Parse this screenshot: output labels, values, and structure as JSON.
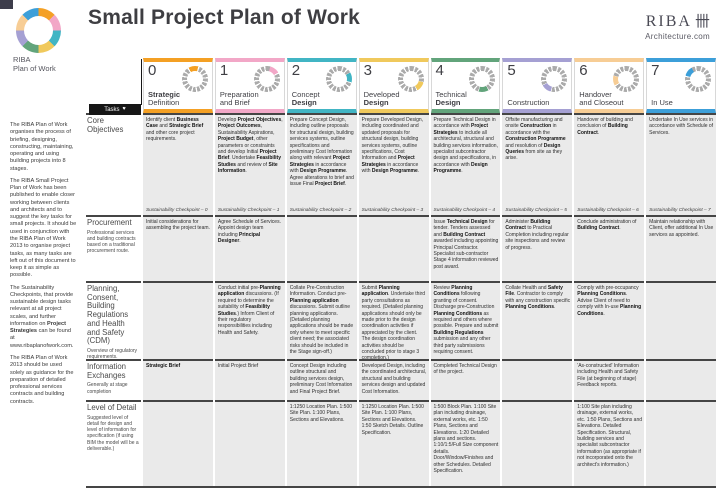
{
  "page_title": "Small Project Plan of Work",
  "logo": {
    "brand": "RIBA",
    "product": "Plan of Work"
  },
  "right_brand": {
    "name": "RIBA",
    "glyph": "卌",
    "site": "Architecture.com"
  },
  "tabs": {
    "stages": "Stages",
    "tasks": "Tasks",
    "heart_icon": "♥"
  },
  "intro": [
    "The RIBA Plan of Work organises the process of briefing, designing, constructing, maintaining, operating and using building projects into 8 stages.",
    "The RIBA Small Project Plan of Work has been published to enable closer working between clients and architects and to suggest the key tasks for small projects. It should be used in conjunction with the RIBA Plan of Work 2013 to organise project tasks, as many tasks are left out of this document to keep it as simple as possible.",
    "The Sustainability Checkpoints, that provide sustainable design tasks relevant at all project scales, and further information on **Project Strategies** can be found at www.ribaplanofwork.com.",
    "The RIBA Plan of Work 2013 should be used solely as guidance for the preparation of detailed professional services contracts and building contracts."
  ],
  "stages": [
    {
      "number": "0",
      "line1": "**Strategic**",
      "line2": "Definition",
      "color": "#F4A024"
    },
    {
      "number": "1",
      "line1": "Preparation",
      "line2": "and Brief",
      "color": "#F2A7C7"
    },
    {
      "number": "2",
      "line1": "Concept",
      "line2": "**Design**",
      "color": "#41B5C4"
    },
    {
      "number": "3",
      "line1": "Developed",
      "line2": "**Design**",
      "color": "#F0C95C"
    },
    {
      "number": "4",
      "line1": "Technical",
      "line2": "**Design**",
      "color": "#62A47B"
    },
    {
      "number": "5",
      "line1": "",
      "line2": "Construction",
      "color": "#A5A0D3"
    },
    {
      "number": "6",
      "line1": "Handover",
      "line2": "and Closeout",
      "color": "#F7CD95"
    },
    {
      "number": "7",
      "line1": "",
      "line2": "In Use",
      "color": "#3C9FD9"
    }
  ],
  "rows": [
    {
      "label": "Core Objectives",
      "sub": "",
      "cells": [
        "Identify client **Business Case** and **Strategic Brief** and other core project requirements.",
        "Develop **Project Objectives**, **Project Outcomes**, Sustainability Aspirations, **Project Budget**, other parameters or constraints and develop Initial **Project Brief**. Undertake **Feasibility Studies** and review of **Site Information**.",
        "Prepare Concept Design, including outline proposals for structural design, building services systems, outline specifications and preliminary Cost Information along with relevant **Project Strategies** in accordance with **Design Programme**. Agree alterations to brief and issue Final **Project Brief**.",
        "Prepare Developed Design, including coordinated and updated proposals for structural design, building services systems, outline specifications, Cost Information and **Project Strategies** in accordance with **Design Programme**.",
        "Prepare Technical Design in accordance with **Project Strategies** to include all architectural, structural and building services information, specialist subcontractor design and specifications, in accordance with **Design Programme**.",
        "Offsite manufacturing and onsite **Construction** in accordance with the **Construction Programme** and resolution of **Design Queries** from site as they arise.",
        "Handover of building and conclusion of **Building Contract**.",
        "Undertake In Use services in accordance with Schedule of Services."
      ],
      "checkpoints": [
        "Sustainability Checkpoint – 0",
        "Sustainability Checkpoint – 1",
        "Sustainability Checkpoint – 2",
        "Sustainability Checkpoint – 3",
        "Sustainability Checkpoint – 4",
        "Sustainability Checkpoint – 5",
        "Sustainability Checkpoint – 6",
        "Sustainability Checkpoint – 7"
      ]
    },
    {
      "label": "Procurement",
      "sub": "Professional services and building contracts based on a traditional procurement route.",
      "cells": [
        "Initial considerations for assembling the project team.",
        "Agree Schedule of Services. Appoint design team including **Principal Designer**.",
        "",
        "",
        "Issue **Technical Design** for tender. Tenders assessed and **Building Contract** awarded including appointing Principal Contractor. Specialist sub-contractor Stage 4 information reviewed post award.",
        "Administer **Building Contract** to Practical Completion including regular site inspections and review of progress.",
        "Conclude administration of **Building Contract**.",
        "Maintain relationship with Client, offer additional In Use services as appointed."
      ],
      "checkpoints": []
    },
    {
      "label": "Planning, Consent, Building Regulations and Health and Safety (CDM)",
      "sub": "Overview of regulatory requirements.",
      "cells": [
        "",
        "Conduct initial pre-**Planning application** discussions. (If required to determine the suitability of **Feasibility Studies**.) Inform Client of their regulatory responsibilities including Health and Safety.",
        "Collate Pre-Construction Information. Conduct pre-**Planning application** discussions. Submit outline planning applications. (Detailed planning applications should be made only where to meet specific client need; the associated risks should be included in the Stage sign-off.)",
        "Submit **Planning application**. Undertake third party consultations as required. (Detailed planning applications should only be made prior to the design coordination activities if appreciated by the client. The design coordination activities should be concluded prior to stage 3 completion.)",
        "Review **Planning Conditions** following granting of consent. Discharge pre-Construction **Planning Conditions** as required and others where possible. Prepare and submit **Building Regulations** submission and any other third party submissions requiring consent.",
        "Collate Health and **Safety File**. Contractor to comply with any construction specific **Planning Conditions**.",
        "Comply with pre-occupancy **Planning Conditions**. Advise Client of need to comply with In-use **Planning Conditions**.",
        ""
      ],
      "checkpoints": []
    },
    {
      "label": "Information Exchanges",
      "sub": "Generally at stage completion",
      "cells": [
        "**Strategic Brief**",
        "Initial Project Brief",
        "Concept Design including outline structural and building services design, preliminary Cost Information and Final Project Brief.",
        "Developed Design, including the coordinated architectural, structural and building services design and updated Cost Information.",
        "Completed Technical Design of the project.",
        "",
        "'As-constructed' Information including Health and Safety File (at beginning of stage) Feedback reports.",
        ""
      ],
      "checkpoints": []
    },
    {
      "label": "Level of Detail",
      "sub": "Suggested level of detail for design and level of information for specification (if using BIM the model will be a deliverable.)",
      "cells": [
        "",
        "",
        "1:1250 Location Plan. 1:500 Site Plan. 1:100 Plans, Sections and Elevations.",
        "1:1250 Location Plan. 1:500 Site Plan. 1:100 Plans, Sections and Elevations. 1:50 Sketch Details. Outline Specification.",
        "1:500 Block Plan. 1:100 Site plan including drainage, external works, etc. 1:50 Plans, Sections and Elevations. 1:20 Detailed plans and sections. 1:10/1:5/Full Size component details. Door/Window/Finishes and other Schedules. Detailed Specification.",
        "",
        "1:100 Site plan including drainage, external works, etc. 1:50 Plans, Sections and Elevations. Detailed Specification. Structural, building services and specialist subcontractor information (as appropriate if not incorporated onto the architect's information.)",
        ""
      ],
      "checkpoints": []
    }
  ]
}
